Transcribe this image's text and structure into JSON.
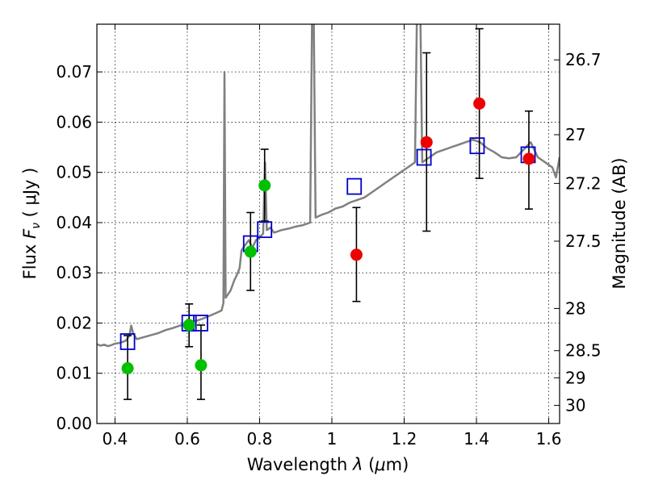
{
  "chart_data": {
    "type": "scatter",
    "title": "",
    "xlabel_prefix": "Wavelength ",
    "xlabel_lambda": "λ",
    "xlabel_suffix": " (",
    "xlabel_mu": "μ",
    "xlabel_unit": "m)",
    "ylabel_main": "Flux ",
    "ylabel_F": "F",
    "ylabel_nu": "ν",
    "ylabel_unit": " ( μJy )",
    "y2label": "Magnitude (AB)",
    "xlim": [
      0.35,
      1.63
    ],
    "ylim": [
      0.0,
      0.0795
    ],
    "grid": true,
    "x_ticks": [
      {
        "value": 0.4,
        "label": "0.4"
      },
      {
        "value": 0.6,
        "label": "0.6"
      },
      {
        "value": 0.8,
        "label": "0.8"
      },
      {
        "value": 1.0,
        "label": "1"
      },
      {
        "value": 1.2,
        "label": "1.2"
      },
      {
        "value": 1.4,
        "label": "1.4"
      },
      {
        "value": 1.6,
        "label": "1.6"
      }
    ],
    "y_ticks": [
      {
        "value": 0.0,
        "label": "0.00"
      },
      {
        "value": 0.01,
        "label": "0.01"
      },
      {
        "value": 0.02,
        "label": "0.02"
      },
      {
        "value": 0.03,
        "label": "0.03"
      },
      {
        "value": 0.04,
        "label": "0.04"
      },
      {
        "value": 0.05,
        "label": "0.05"
      },
      {
        "value": 0.06,
        "label": "0.06"
      },
      {
        "value": 0.07,
        "label": "0.07"
      }
    ],
    "y2_ticks": [
      {
        "flux": 0.0724,
        "label": "26.7"
      },
      {
        "flux": 0.0575,
        "label": "27"
      },
      {
        "flux": 0.0478,
        "label": "27.2"
      },
      {
        "flux": 0.0363,
        "label": "27.5"
      },
      {
        "flux": 0.0229,
        "label": "28"
      },
      {
        "flux": 0.0145,
        "label": "28.5"
      },
      {
        "flux": 0.0091,
        "label": "29"
      },
      {
        "flux": 0.0036,
        "label": "30"
      }
    ],
    "colors": {
      "spectrum": "#808080",
      "model": "#0000cc",
      "green": "#00c000",
      "red": "#ee0000",
      "errorbar": "#000000"
    },
    "spectrum": [
      [
        0.35,
        0.0158
      ],
      [
        0.36,
        0.0155
      ],
      [
        0.37,
        0.0157
      ],
      [
        0.38,
        0.0154
      ],
      [
        0.39,
        0.0156
      ],
      [
        0.4,
        0.0159
      ],
      [
        0.41,
        0.016
      ],
      [
        0.42,
        0.0162
      ],
      [
        0.43,
        0.0165
      ],
      [
        0.44,
        0.0175
      ],
      [
        0.445,
        0.0195
      ],
      [
        0.45,
        0.018
      ],
      [
        0.46,
        0.0168
      ],
      [
        0.48,
        0.0172
      ],
      [
        0.5,
        0.0176
      ],
      [
        0.52,
        0.018
      ],
      [
        0.54,
        0.0186
      ],
      [
        0.56,
        0.019
      ],
      [
        0.58,
        0.0195
      ],
      [
        0.6,
        0.0198
      ],
      [
        0.62,
        0.0203
      ],
      [
        0.64,
        0.0208
      ],
      [
        0.66,
        0.0214
      ],
      [
        0.68,
        0.022
      ],
      [
        0.695,
        0.0225
      ],
      [
        0.7,
        0.024
      ],
      [
        0.703,
        0.07
      ],
      [
        0.706,
        0.025
      ],
      [
        0.72,
        0.0265
      ],
      [
        0.73,
        0.0285
      ],
      [
        0.74,
        0.03
      ],
      [
        0.745,
        0.031
      ],
      [
        0.75,
        0.0345
      ],
      [
        0.76,
        0.0355
      ],
      [
        0.77,
        0.0365
      ],
      [
        0.78,
        0.035
      ],
      [
        0.79,
        0.0365
      ],
      [
        0.8,
        0.037
      ],
      [
        0.81,
        0.0378
      ],
      [
        0.815,
        0.052
      ],
      [
        0.82,
        0.0385
      ],
      [
        0.83,
        0.039
      ],
      [
        0.84,
        0.038
      ],
      [
        0.86,
        0.0385
      ],
      [
        0.88,
        0.0388
      ],
      [
        0.9,
        0.0392
      ],
      [
        0.92,
        0.0395
      ],
      [
        0.94,
        0.04
      ],
      [
        0.945,
        0.08
      ],
      [
        0.95,
        0.08
      ],
      [
        0.955,
        0.041
      ],
      [
        0.97,
        0.0415
      ],
      [
        0.99,
        0.042
      ],
      [
        1.01,
        0.0428
      ],
      [
        1.03,
        0.0432
      ],
      [
        1.05,
        0.044
      ],
      [
        1.07,
        0.0445
      ],
      [
        1.09,
        0.045
      ],
      [
        1.11,
        0.046
      ],
      [
        1.13,
        0.047
      ],
      [
        1.15,
        0.048
      ],
      [
        1.17,
        0.049
      ],
      [
        1.19,
        0.05
      ],
      [
        1.21,
        0.051
      ],
      [
        1.23,
        0.052
      ],
      [
        1.235,
        0.08
      ],
      [
        1.245,
        0.08
      ],
      [
        1.25,
        0.052
      ],
      [
        1.27,
        0.053
      ],
      [
        1.29,
        0.054
      ],
      [
        1.31,
        0.0545
      ],
      [
        1.33,
        0.055
      ],
      [
        1.35,
        0.0555
      ],
      [
        1.37,
        0.056
      ],
      [
        1.39,
        0.0565
      ],
      [
        1.41,
        0.056
      ],
      [
        1.43,
        0.0548
      ],
      [
        1.45,
        0.054
      ],
      [
        1.47,
        0.053
      ],
      [
        1.49,
        0.0528
      ],
      [
        1.51,
        0.053
      ],
      [
        1.53,
        0.0545
      ],
      [
        1.55,
        0.056
      ],
      [
        1.57,
        0.053
      ],
      [
        1.59,
        0.052
      ],
      [
        1.61,
        0.051
      ],
      [
        1.62,
        0.049
      ],
      [
        1.63,
        0.053
      ]
    ],
    "model_points": [
      {
        "x": 0.435,
        "y": 0.0163
      },
      {
        "x": 0.605,
        "y": 0.02
      },
      {
        "x": 0.637,
        "y": 0.02
      },
      {
        "x": 0.775,
        "y": 0.0358
      },
      {
        "x": 0.814,
        "y": 0.0386
      },
      {
        "x": 1.062,
        "y": 0.0472
      },
      {
        "x": 1.255,
        "y": 0.053
      },
      {
        "x": 1.402,
        "y": 0.0553
      },
      {
        "x": 1.543,
        "y": 0.0535
      }
    ],
    "green_points": [
      {
        "x": 0.435,
        "y": 0.011,
        "err_low": 0.0048,
        "err_high": 0.0175
      },
      {
        "x": 0.605,
        "y": 0.0196,
        "err_low": 0.0153,
        "err_high": 0.0238
      },
      {
        "x": 0.638,
        "y": 0.0116,
        "err_low": 0.0048,
        "err_high": 0.0196
      },
      {
        "x": 0.775,
        "y": 0.0342,
        "err_low": 0.0265,
        "err_high": 0.042
      },
      {
        "x": 0.814,
        "y": 0.0474,
        "err_low": 0.0403,
        "err_high": 0.0546
      }
    ],
    "red_points": [
      {
        "x": 1.068,
        "y": 0.0336,
        "err_low": 0.0243,
        "err_high": 0.043
      },
      {
        "x": 1.262,
        "y": 0.056,
        "err_low": 0.0383,
        "err_high": 0.0738
      },
      {
        "x": 1.408,
        "y": 0.0637,
        "err_low": 0.0488,
        "err_high": 0.0786
      },
      {
        "x": 1.545,
        "y": 0.0527,
        "err_low": 0.0427,
        "err_high": 0.0622
      }
    ]
  }
}
